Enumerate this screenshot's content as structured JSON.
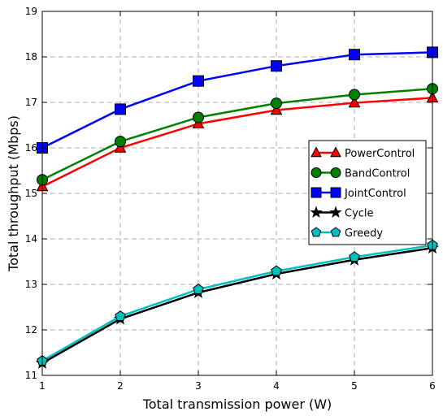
{
  "chart_data": {
    "type": "line",
    "title": "",
    "xlabel": "Total transmission power (W)",
    "ylabel": "Total throughput (Mbps)",
    "xlim": [
      1,
      6
    ],
    "ylim": [
      11,
      19
    ],
    "x": [
      1,
      2,
      3,
      4,
      5,
      6
    ],
    "x_ticks": [
      "1",
      "2",
      "3",
      "4",
      "5",
      "6"
    ],
    "y_ticks": [
      "11",
      "12",
      "13",
      "14",
      "15",
      "16",
      "17",
      "18",
      "19"
    ],
    "grid": true,
    "legend_position": "right",
    "series": [
      {
        "name": "PowerControl",
        "color": "#ff0000",
        "marker": "triangle",
        "values": [
          15.15,
          16.0,
          16.53,
          16.83,
          16.99,
          17.1
        ]
      },
      {
        "name": "BandControl",
        "color": "#008000",
        "marker": "circle",
        "values": [
          15.3,
          16.14,
          16.67,
          16.98,
          17.17,
          17.3
        ]
      },
      {
        "name": "JointControl",
        "color": "#0000ff",
        "marker": "square",
        "values": [
          16.0,
          16.85,
          17.47,
          17.8,
          18.05,
          18.1
        ]
      },
      {
        "name": "Cycle",
        "color": "#000000",
        "marker": "star",
        "values": [
          11.27,
          12.24,
          12.82,
          13.23,
          13.54,
          13.8
        ]
      },
      {
        "name": "Greedy",
        "color": "#00bfbf",
        "marker": "pentagon",
        "values": [
          11.32,
          12.3,
          12.89,
          13.29,
          13.6,
          13.86
        ]
      }
    ]
  }
}
